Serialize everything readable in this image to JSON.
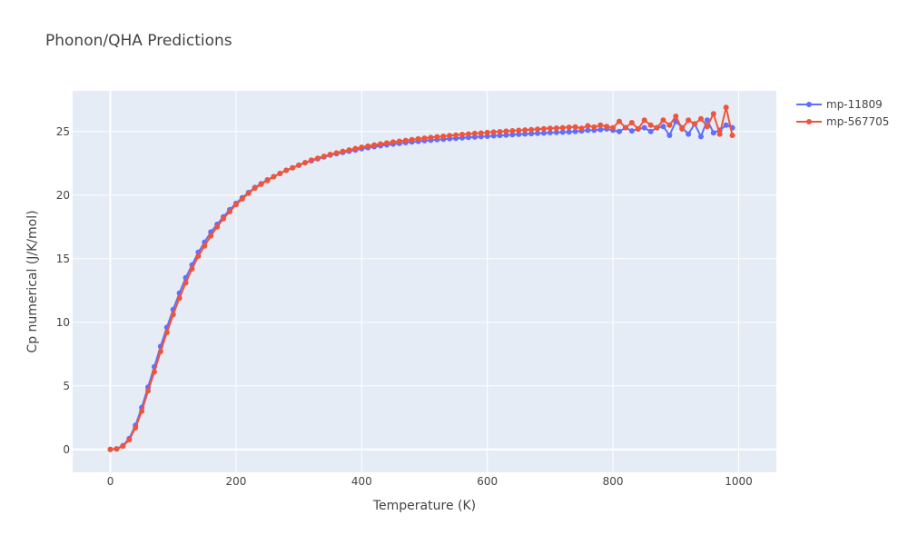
{
  "chart_data": {
    "type": "line",
    "title": "Phonon/QHA Predictions",
    "xlabel": "Temperature (K)",
    "ylabel": "Cp numerical (J/K/mol)",
    "xlim": [
      -60,
      1060
    ],
    "ylim": [
      -1.8,
      28.2
    ],
    "x_ticks": [
      0,
      200,
      400,
      600,
      800,
      1000
    ],
    "y_ticks": [
      0,
      5,
      10,
      15,
      20,
      25
    ],
    "grid": true,
    "legend_position": "top-right",
    "x": [
      0,
      10,
      20,
      30,
      40,
      50,
      60,
      70,
      80,
      90,
      100,
      110,
      120,
      130,
      140,
      150,
      160,
      170,
      180,
      190,
      200,
      210,
      220,
      230,
      240,
      250,
      260,
      270,
      280,
      290,
      300,
      310,
      320,
      330,
      340,
      350,
      360,
      370,
      380,
      390,
      400,
      410,
      420,
      430,
      440,
      450,
      460,
      470,
      480,
      490,
      500,
      510,
      520,
      530,
      540,
      550,
      560,
      570,
      580,
      590,
      600,
      610,
      620,
      630,
      640,
      650,
      660,
      670,
      680,
      690,
      700,
      710,
      720,
      730,
      740,
      750,
      760,
      770,
      780,
      790,
      800,
      810,
      820,
      830,
      840,
      850,
      860,
      870,
      880,
      890,
      900,
      910,
      920,
      930,
      940,
      950,
      960,
      970,
      980,
      990
    ],
    "series": [
      {
        "name": "mp-11809",
        "color": "#636efa",
        "values": [
          0,
          0.05,
          0.3,
          0.85,
          1.9,
          3.3,
          4.9,
          6.5,
          8.1,
          9.6,
          11.0,
          12.3,
          13.5,
          14.5,
          15.5,
          16.3,
          17.1,
          17.7,
          18.3,
          18.85,
          19.35,
          19.8,
          20.2,
          20.6,
          20.9,
          21.2,
          21.45,
          21.7,
          21.95,
          22.15,
          22.35,
          22.55,
          22.7,
          22.85,
          23.0,
          23.15,
          23.25,
          23.35,
          23.45,
          23.55,
          23.65,
          23.73,
          23.81,
          23.88,
          23.95,
          24.01,
          24.07,
          24.13,
          24.18,
          24.23,
          24.28,
          24.32,
          24.36,
          24.4,
          24.44,
          24.47,
          24.5,
          24.54,
          24.57,
          24.6,
          24.63,
          24.66,
          24.69,
          24.72,
          24.75,
          24.78,
          24.81,
          24.83,
          24.86,
          24.88,
          24.91,
          24.93,
          24.95,
          24.97,
          25.0,
          25.05,
          25.1,
          25.1,
          25.15,
          25.2,
          25.1,
          25.0,
          25.3,
          25.05,
          25.2,
          25.3,
          25.0,
          25.3,
          25.4,
          24.7,
          25.8,
          25.3,
          24.8,
          25.6,
          24.6,
          25.9,
          24.9,
          25.1,
          25.5,
          25.3
        ]
      },
      {
        "name": "mp-567705",
        "color": "#ef553b",
        "values": [
          0,
          0.04,
          0.25,
          0.75,
          1.7,
          3.0,
          4.6,
          6.1,
          7.7,
          9.2,
          10.6,
          11.9,
          13.1,
          14.2,
          15.2,
          16.0,
          16.8,
          17.5,
          18.15,
          18.7,
          19.25,
          19.7,
          20.15,
          20.55,
          20.85,
          21.15,
          21.45,
          21.7,
          21.95,
          22.15,
          22.35,
          22.55,
          22.75,
          22.9,
          23.05,
          23.2,
          23.32,
          23.44,
          23.55,
          23.66,
          23.76,
          23.85,
          23.94,
          24.02,
          24.1,
          24.17,
          24.24,
          24.3,
          24.36,
          24.42,
          24.48,
          24.53,
          24.58,
          24.63,
          24.68,
          24.72,
          24.77,
          24.81,
          24.85,
          24.88,
          24.92,
          24.96,
          24.99,
          25.03,
          25.06,
          25.09,
          25.12,
          25.15,
          25.18,
          25.22,
          25.25,
          25.27,
          25.3,
          25.33,
          25.36,
          25.25,
          25.45,
          25.35,
          25.5,
          25.4,
          25.3,
          25.8,
          25.3,
          25.7,
          25.2,
          25.9,
          25.5,
          25.3,
          25.9,
          25.5,
          26.2,
          25.2,
          25.9,
          25.6,
          26.0,
          25.4,
          26.4,
          24.8,
          26.9,
          24.7
        ]
      }
    ]
  }
}
